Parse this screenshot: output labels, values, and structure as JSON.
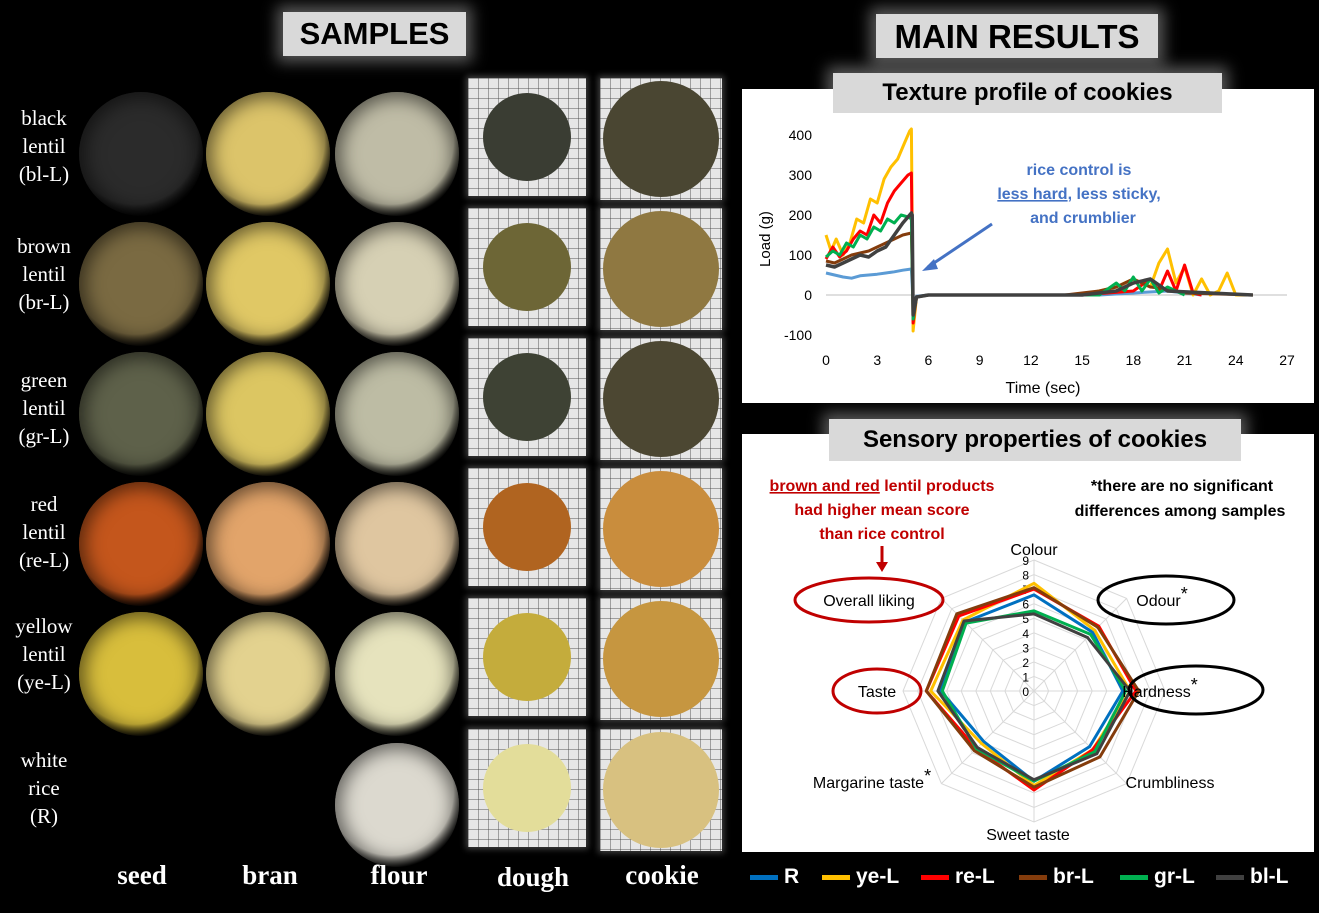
{
  "samples_title": "SAMPLES",
  "results_title": "MAIN RESULTS",
  "texture_title": "Texture profile of cookies",
  "sensory_title": "Sensory properties of cookies",
  "rows": [
    {
      "line1": "black",
      "line2": "lentil",
      "line3": "(bl-L)",
      "seed": "#2b2b2b",
      "bran": "#dcc46a",
      "flour": "#bfbca6",
      "dough": "#3a3d33",
      "cookie": "#4a4632"
    },
    {
      "line1": "brown",
      "line2": "lentil",
      "line3": "(br-L)",
      "seed": "#7a6a42",
      "bran": "#e0c865",
      "flour": "#d6d0b4",
      "dough": "#6d6636",
      "cookie": "#8f7841"
    },
    {
      "line1": "green",
      "line2": "lentil",
      "line3": "(gr-L)",
      "seed": "#5e614a",
      "bran": "#dcc662",
      "flour": "#bdbca4",
      "dough": "#3e4234",
      "cookie": "#4c4732"
    },
    {
      "line1": "red",
      "line2": "lentil",
      "line3": "(re-L)",
      "seed": "#c4561c",
      "bran": "#e2a46a",
      "flour": "#dfc6a0",
      "dough": "#b06420",
      "cookie": "#c98d3d"
    },
    {
      "line1": "yellow",
      "line2": "lentil",
      "line3": "(ye-L)",
      "seed": "#d8be3c",
      "bran": "#e3d28f",
      "flour": "#e6e3bd",
      "dough": "#c4ac3c",
      "cookie": "#c69640"
    },
    {
      "line1": "white",
      "line2": "rice",
      "line3": "(R)",
      "seed": "",
      "bran": "",
      "flour": "#dcd9cf",
      "dough": "#e3dd9a",
      "cookie": "#d8c180"
    }
  ],
  "columns": [
    "seed",
    "bran",
    "flour",
    "dough",
    "cookie"
  ],
  "texture_annotation": {
    "line1": "rice control is",
    "line2_underlined": "less hard",
    "line2_rest": ", less sticky,",
    "line3": "and crumblier"
  },
  "sensory_annotation": {
    "line1_underlined": "brown and red",
    "line1_rest": " lentil products",
    "line2": "had higher mean score",
    "line3": "than rice control"
  },
  "sensory_note": {
    "line1": "*there are no significant",
    "line2": "differences  among samples"
  },
  "chart_data": [
    {
      "type": "line",
      "title": "Texture profile of cookies",
      "xlabel": "Time (sec)",
      "ylabel": "Load (g)",
      "xlim": [
        0,
        27
      ],
      "ylim": [
        -100,
        400
      ],
      "xticks": [
        "0",
        "3",
        "6",
        "9",
        "12",
        "15",
        "18",
        "21",
        "24",
        "27"
      ],
      "yticks": [
        "-100",
        "0",
        "100",
        "200",
        "300",
        "400"
      ],
      "series": [
        {
          "name": "R",
          "color": "#5b9bd5",
          "x": [
            0,
            0.5,
            1,
            1.5,
            2,
            2.5,
            3,
            3.5,
            4,
            4.5,
            5,
            5.1,
            5.3,
            6,
            8,
            12,
            16,
            18,
            20,
            21,
            22
          ],
          "y": [
            55,
            50,
            45,
            42,
            48,
            50,
            52,
            55,
            58,
            62,
            65,
            -20,
            -3,
            0,
            0,
            0,
            0,
            5,
            10,
            5,
            0
          ]
        },
        {
          "name": "ye-L",
          "color": "#ffc000",
          "x": [
            0,
            0.3,
            0.6,
            1,
            1.4,
            1.8,
            2.2,
            2.6,
            3,
            3.4,
            3.8,
            4.2,
            4.6,
            4.9,
            5,
            5.1,
            5.3,
            6,
            10,
            15,
            17,
            18,
            19,
            19.5,
            20,
            20.5,
            21,
            21.5,
            22,
            22.5,
            23,
            23.5,
            24,
            25
          ],
          "y": [
            150,
            110,
            140,
            100,
            130,
            190,
            180,
            240,
            230,
            290,
            320,
            340,
            380,
            410,
            415,
            -90,
            -5,
            0,
            0,
            0,
            20,
            40,
            20,
            80,
            115,
            30,
            70,
            0,
            40,
            0,
            10,
            55,
            0,
            0
          ]
        },
        {
          "name": "re-L",
          "color": "#ff0000",
          "x": [
            0,
            0.4,
            0.8,
            1.2,
            1.6,
            2,
            2.4,
            2.8,
            3.2,
            3.6,
            4,
            4.4,
            4.8,
            5,
            5.1,
            5.3,
            6,
            10,
            15,
            18,
            19,
            19.5,
            20,
            20.5,
            21,
            21.5,
            22
          ],
          "y": [
            90,
            120,
            95,
            110,
            140,
            160,
            150,
            200,
            180,
            230,
            260,
            280,
            300,
            305,
            -70,
            -5,
            0,
            0,
            0,
            10,
            40,
            10,
            60,
            10,
            75,
            5,
            0
          ]
        },
        {
          "name": "br-L",
          "color": "#843c0c",
          "x": [
            0,
            0.5,
            1,
            1.5,
            2,
            2.5,
            3,
            3.5,
            4,
            4.5,
            5,
            5.1,
            5.3,
            6,
            10,
            14,
            16,
            17,
            18,
            19,
            20,
            21,
            25
          ],
          "y": [
            85,
            80,
            90,
            100,
            105,
            110,
            120,
            130,
            140,
            150,
            155,
            -40,
            -5,
            0,
            0,
            0,
            10,
            20,
            40,
            20,
            15,
            5,
            0
          ]
        },
        {
          "name": "gr-L",
          "color": "#00b050",
          "x": [
            0,
            0.4,
            0.8,
            1.2,
            1.6,
            2,
            2.4,
            2.8,
            3.2,
            3.6,
            4,
            4.4,
            4.8,
            5,
            5.1,
            5.3,
            6,
            10,
            16,
            17,
            17.5,
            18,
            18.5,
            19,
            19.5,
            20,
            21
          ],
          "y": [
            95,
            110,
            100,
            130,
            120,
            150,
            140,
            170,
            160,
            190,
            180,
            200,
            195,
            190,
            -60,
            -5,
            0,
            0,
            0,
            30,
            10,
            45,
            10,
            40,
            5,
            20,
            0
          ]
        },
        {
          "name": "bl-L",
          "color": "#404040",
          "x": [
            0,
            0.5,
            1,
            1.5,
            2,
            2.5,
            3,
            3.5,
            4,
            4.5,
            5,
            5.05,
            5.1,
            5.3,
            6,
            10,
            15,
            16,
            17,
            18,
            19,
            20,
            25
          ],
          "y": [
            75,
            70,
            80,
            90,
            100,
            95,
            110,
            120,
            150,
            180,
            205,
            200,
            -50,
            -5,
            0,
            0,
            0,
            5,
            10,
            30,
            40,
            10,
            0
          ]
        }
      ]
    },
    {
      "type": "radar",
      "title": "Sensory properties of cookies",
      "axes": [
        "Colour",
        "Odour",
        "Hardness",
        "Crumbliness",
        "Sweet taste",
        "Margarine taste",
        "Taste",
        "Overall liking"
      ],
      "rlim": [
        0,
        9
      ],
      "rticks": [
        "0",
        "1",
        "2",
        "3",
        "4",
        "5",
        "6",
        "7",
        "8",
        "9"
      ],
      "series": [
        {
          "name": "R",
          "color": "#0070c0",
          "values": [
            6.6,
            5.7,
            6.1,
            5.4,
            6.2,
            4.9,
            6.4,
            6.7
          ]
        },
        {
          "name": "ye-L",
          "color": "#ffc000",
          "values": [
            7.4,
            5.9,
            6.6,
            5.7,
            6.5,
            5.1,
            7.1,
            6.9
          ]
        },
        {
          "name": "re-L",
          "color": "#ff0000",
          "values": [
            7.0,
            6.3,
            7.0,
            5.7,
            6.8,
            5.6,
            7.4,
            7.3
          ]
        },
        {
          "name": "br-L",
          "color": "#843c0c",
          "values": [
            7.1,
            6.2,
            7.2,
            6.4,
            6.6,
            5.8,
            7.4,
            7.5
          ]
        },
        {
          "name": "gr-L",
          "color": "#00b050",
          "values": [
            5.5,
            5.5,
            6.3,
            5.9,
            6.2,
            5.6,
            6.3,
            6.6
          ]
        },
        {
          "name": "bl-L",
          "color": "#404040",
          "values": [
            5.3,
            5.2,
            6.6,
            6.1,
            6.1,
            5.5,
            6.6,
            6.8
          ]
        }
      ],
      "highlighted_axes_red": [
        "Overall liking",
        "Taste"
      ],
      "highlighted_axes_black_star": [
        "Odour",
        "Hardness"
      ],
      "starred_axes": [
        "Margarine taste"
      ]
    }
  ],
  "legend": [
    {
      "name": "R",
      "color": "#0070c0"
    },
    {
      "name": "ye-L",
      "color": "#ffc000"
    },
    {
      "name": "re-L",
      "color": "#ff0000"
    },
    {
      "name": "br-L",
      "color": "#843c0c"
    },
    {
      "name": "gr-L",
      "color": "#00b050"
    },
    {
      "name": "bl-L",
      "color": "#404040"
    }
  ]
}
